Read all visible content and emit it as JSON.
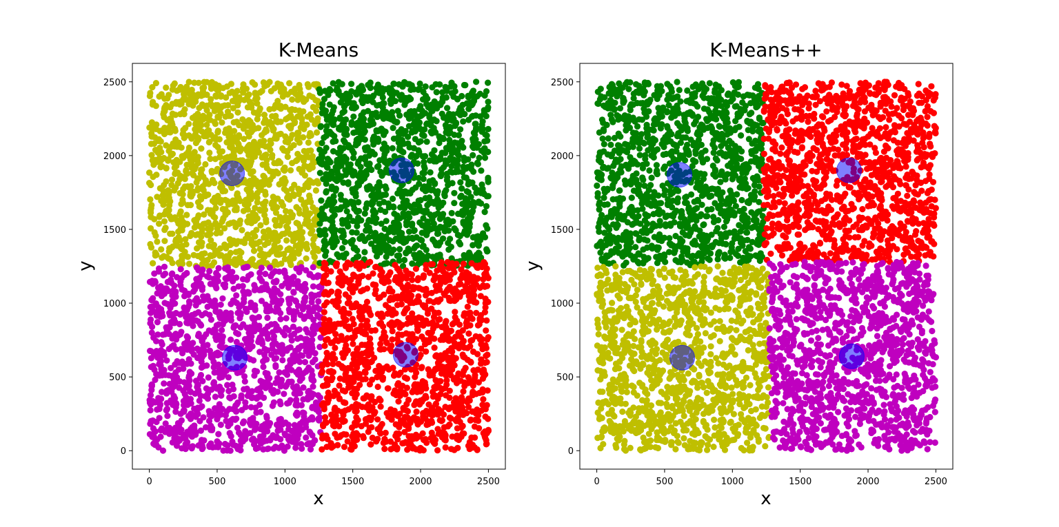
{
  "chart_data": [
    {
      "type": "scatter",
      "title": "K-Means",
      "xlabel": "x",
      "ylabel": "y",
      "xlim": [
        -125,
        2625
      ],
      "ylim": [
        -125,
        2625
      ],
      "xticks": [
        0,
        500,
        1000,
        1500,
        2000,
        2500
      ],
      "yticks": [
        0,
        500,
        1000,
        1500,
        2000,
        2500
      ],
      "grid": false,
      "legend": "none",
      "clusters": [
        {
          "color": "#bfbf00",
          "x_range": [
            0,
            1250
          ],
          "y_range": [
            1250,
            2500
          ],
          "count": 1250
        },
        {
          "color": "#008000",
          "x_range": [
            1250,
            2500
          ],
          "y_range": [
            1250,
            2500
          ],
          "count": 1250
        },
        {
          "color": "#bf00bf",
          "x_range": [
            0,
            1270
          ],
          "y_range": [
            0,
            1250
          ],
          "count": 1250
        },
        {
          "color": "#ff0000",
          "x_range": [
            1270,
            2500
          ],
          "y_range": [
            0,
            1280
          ],
          "count": 1250
        }
      ],
      "centroids": [
        {
          "x": 610,
          "y": 1880
        },
        {
          "x": 1860,
          "y": 1900
        },
        {
          "x": 630,
          "y": 630
        },
        {
          "x": 1890,
          "y": 650
        }
      ],
      "centroid_color": "#0000ff"
    },
    {
      "type": "scatter",
      "title": "K-Means++",
      "xlabel": "x",
      "ylabel": "y",
      "xlim": [
        -125,
        2625
      ],
      "ylim": [
        -125,
        2625
      ],
      "xticks": [
        0,
        500,
        1000,
        1500,
        2000,
        2500
      ],
      "yticks": [
        0,
        500,
        1000,
        1500,
        2000,
        2500
      ],
      "grid": false,
      "legend": "none",
      "clusters": [
        {
          "color": "#008000",
          "x_range": [
            0,
            1230
          ],
          "y_range": [
            1250,
            2500
          ],
          "count": 1250
        },
        {
          "color": "#ff0000",
          "x_range": [
            1230,
            2500
          ],
          "y_range": [
            1280,
            2500
          ],
          "count": 1250
        },
        {
          "color": "#bfbf00",
          "x_range": [
            0,
            1270
          ],
          "y_range": [
            0,
            1250
          ],
          "count": 1250
        },
        {
          "color": "#bf00bf",
          "x_range": [
            1270,
            2500
          ],
          "y_range": [
            0,
            1280
          ],
          "count": 1250
        }
      ],
      "centroids": [
        {
          "x": 610,
          "y": 1870
        },
        {
          "x": 1860,
          "y": 1900
        },
        {
          "x": 630,
          "y": 630
        },
        {
          "x": 1880,
          "y": 640
        }
      ],
      "centroid_color": "#0000ff"
    }
  ]
}
